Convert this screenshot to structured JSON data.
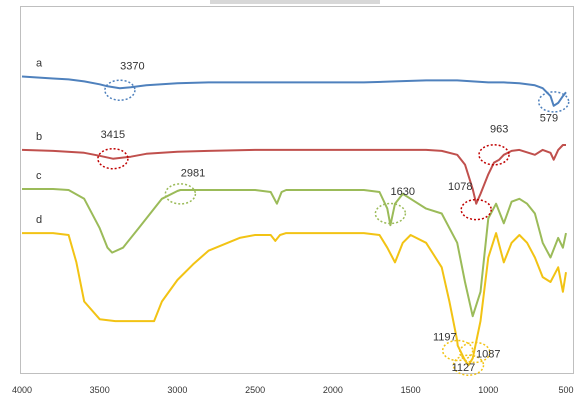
{
  "chart_data": {
    "type": "line",
    "title": "",
    "xlabel": "",
    "ylabel": "",
    "xlim": [
      4000,
      500
    ],
    "x_reversed": true,
    "y_axis_shown": false,
    "grid": false,
    "x_ticks": [
      4000,
      3500,
      3000,
      2500,
      2000,
      1500,
      1000,
      500
    ],
    "series": [
      {
        "name": "a",
        "color": "#4f81bd",
        "x": [
          4000,
          3900,
          3800,
          3700,
          3600,
          3500,
          3450,
          3370,
          3300,
          3200,
          3000,
          2800,
          2500,
          2200,
          2000,
          1800,
          1600,
          1400,
          1200,
          1100,
          1000,
          900,
          800,
          700,
          650,
          600,
          579,
          550,
          520,
          500
        ],
        "y": [
          70,
          71,
          72,
          73,
          75,
          78,
          80,
          82,
          81,
          79,
          77,
          76,
          76,
          76,
          76,
          76,
          75,
          74,
          74,
          75,
          76,
          76,
          77,
          79,
          82,
          90,
          100,
          97,
          90,
          86
        ]
      },
      {
        "name": "b",
        "color": "#c0504d",
        "x": [
          4000,
          3800,
          3600,
          3500,
          3415,
          3300,
          3200,
          3000,
          2800,
          2500,
          2200,
          2000,
          1800,
          1600,
          1400,
          1300,
          1200,
          1150,
          1100,
          1078,
          1050,
          1000,
          963,
          930,
          900,
          850,
          800,
          700,
          650,
          600,
          579,
          550,
          520,
          500
        ],
        "y": [
          145,
          146,
          148,
          151,
          154,
          152,
          149,
          147,
          146,
          145,
          145,
          145,
          145,
          145,
          145,
          146,
          150,
          160,
          185,
          200,
          190,
          170,
          158,
          155,
          150,
          146,
          145,
          150,
          145,
          148,
          155,
          145,
          140,
          140
        ]
      },
      {
        "name": "c",
        "color": "#9bbb59",
        "x": [
          4000,
          3800,
          3700,
          3600,
          3500,
          3450,
          3420,
          3350,
          3250,
          3100,
          3000,
          2981,
          2900,
          2800,
          2500,
          2400,
          2360,
          2330,
          2300,
          2200,
          2000,
          1800,
          1700,
          1650,
          1630,
          1600,
          1550,
          1500,
          1400,
          1300,
          1200,
          1150,
          1100,
          1050,
          1000,
          950,
          900,
          850,
          800,
          750,
          700,
          650,
          600,
          550,
          520,
          500
        ],
        "y": [
          185,
          185,
          186,
          195,
          225,
          245,
          250,
          245,
          225,
          195,
          187,
          186,
          186,
          186,
          186,
          188,
          200,
          188,
          186,
          186,
          186,
          186,
          188,
          205,
          222,
          200,
          190,
          195,
          205,
          210,
          240,
          280,
          315,
          290,
          215,
          200,
          220,
          198,
          195,
          200,
          210,
          240,
          255,
          235,
          245,
          230
        ]
      },
      {
        "name": "d",
        "color": "#f2c314",
        "x": [
          4000,
          3800,
          3700,
          3650,
          3600,
          3500,
          3400,
          3300,
          3200,
          3150,
          3100,
          3000,
          2900,
          2800,
          2600,
          2500,
          2400,
          2370,
          2340,
          2300,
          2200,
          2000,
          1800,
          1700,
          1650,
          1600,
          1550,
          1500,
          1400,
          1300,
          1250,
          1200,
          1197,
          1150,
          1127,
          1100,
          1087,
          1050,
          1000,
          950,
          900,
          850,
          800,
          750,
          700,
          650,
          600,
          550,
          520,
          500
        ],
        "y": [
          230,
          230,
          232,
          260,
          300,
          318,
          320,
          320,
          320,
          320,
          300,
          278,
          262,
          248,
          235,
          232,
          232,
          238,
          232,
          230,
          230,
          230,
          230,
          232,
          245,
          260,
          240,
          232,
          240,
          265,
          300,
          340,
          345,
          360,
          365,
          358,
          348,
          320,
          255,
          230,
          260,
          240,
          232,
          240,
          255,
          275,
          280,
          265,
          290,
          270
        ]
      }
    ],
    "series_labels": [
      "a",
      "b",
      "c",
      "d"
    ],
    "annotations": [
      {
        "label": "3370",
        "series": "a",
        "x": 3370,
        "y": 84,
        "color": "#4f81bd",
        "label_x": 3290,
        "label_y": 63
      },
      {
        "label": "579",
        "series": "a",
        "x": 579,
        "y": 96,
        "color": "#4f81bd",
        "label_x": 610,
        "label_y": 116
      },
      {
        "label": "3415",
        "series": "b",
        "x": 3415,
        "y": 154,
        "color": "#c00000",
        "label_x": 3415,
        "label_y": 133
      },
      {
        "label": "963",
        "series": "b",
        "x": 963,
        "y": 150,
        "color": "#c00000",
        "label_x": 930,
        "label_y": 127
      },
      {
        "label": "1078",
        "series": "b",
        "x": 1078,
        "y": 206,
        "color": "#c00000",
        "label_x": 1180,
        "label_y": 186
      },
      {
        "label": "2981",
        "series": "c",
        "x": 2981,
        "y": 190,
        "color": "#9bbb59",
        "label_x": 2900,
        "label_y": 172
      },
      {
        "label": "1630",
        "series": "c",
        "x": 1630,
        "y": 210,
        "color": "#9bbb59",
        "label_x": 1550,
        "label_y": 191
      },
      {
        "label": "1197",
        "series": "d",
        "x": 1197,
        "y": 350,
        "color": "#f2c314",
        "label_x": 1280,
        "label_y": 340
      },
      {
        "label": "1127",
        "series": "d",
        "x": 1127,
        "y": 365,
        "color": "#f2c314",
        "label_x": 1160,
        "label_y": 371
      },
      {
        "label": "1087",
        "series": "d",
        "x": 1087,
        "y": 352,
        "color": "#f2c314",
        "label_x": 1000,
        "label_y": 357
      }
    ]
  }
}
